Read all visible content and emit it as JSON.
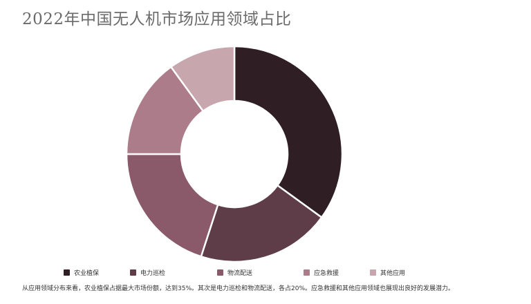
{
  "chart_data": {
    "type": "pie",
    "title": "2022年中国无人机市场应用领域占比",
    "categories": [
      "农业植保",
      "电力巡检",
      "物流配送",
      "应急救援",
      "其他应用"
    ],
    "values": [
      35,
      20,
      20,
      15,
      10
    ],
    "colors": [
      "#2f1f25",
      "#5e3c48",
      "#8a5a6a",
      "#ad7c8b",
      "#c8a6ae"
    ],
    "legend": "bottom"
  },
  "note": "从应用领域分布来看，农业植保占据最大市场份额，达到35%。其次是电力巡检和物流配送，各占20%。应急救援和其他应用领域也展现出良好的发展潜力。"
}
